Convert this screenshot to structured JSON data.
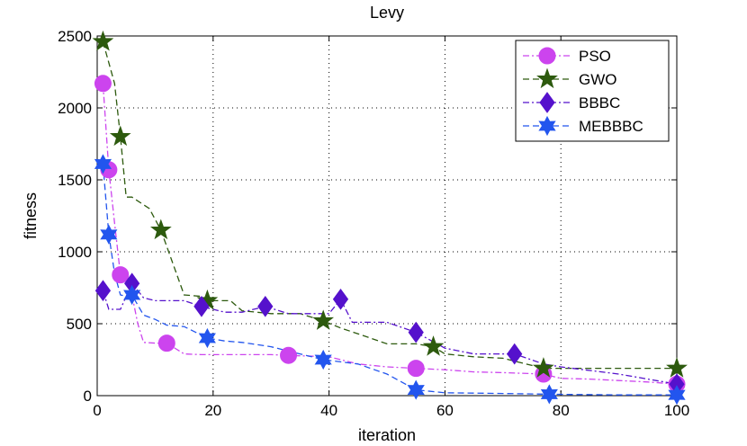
{
  "chart_data": {
    "type": "line",
    "title": "Levy",
    "xlabel": "iteration",
    "ylabel": "fitness",
    "xlim": [
      0,
      100
    ],
    "ylim": [
      0,
      2500
    ],
    "xticks": [
      0,
      20,
      40,
      60,
      80,
      100
    ],
    "yticks": [
      0,
      500,
      1000,
      1500,
      2000,
      2500
    ],
    "grid": true,
    "legend_position": "top-right",
    "series": [
      {
        "name": "PSO",
        "color": "#cc44ee",
        "linestyle": "dashdot",
        "marker": "circle",
        "x": [
          1,
          2,
          3,
          4,
          5,
          6,
          7,
          8,
          10,
          12,
          15,
          18,
          20,
          25,
          30,
          33,
          40,
          45,
          50,
          55,
          60,
          65,
          70,
          77,
          80,
          85,
          90,
          95,
          100
        ],
        "y": [
          2170,
          1570,
          1200,
          840,
          800,
          700,
          500,
          370,
          365,
          365,
          290,
          285,
          285,
          285,
          285,
          280,
          270,
          220,
          200,
          190,
          180,
          165,
          160,
          150,
          120,
          115,
          105,
          95,
          80
        ],
        "marker_x": [
          1,
          2,
          4,
          12,
          33,
          55,
          77,
          100
        ],
        "marker_y": [
          2170,
          1570,
          840,
          365,
          280,
          190,
          150,
          80
        ]
      },
      {
        "name": "GWO",
        "color": "#2d5a0e",
        "linestyle": "dashed",
        "marker": "star5",
        "x": [
          1,
          3,
          4,
          5,
          6,
          9,
          11,
          15,
          18,
          19,
          23,
          25,
          30,
          35,
          39,
          42,
          45,
          50,
          55,
          58,
          60,
          65,
          70,
          77,
          80,
          90,
          100
        ],
        "y": [
          2460,
          2170,
          1800,
          1380,
          1380,
          1300,
          1150,
          700,
          690,
          660,
          660,
          590,
          570,
          570,
          520,
          470,
          430,
          360,
          360,
          340,
          290,
          270,
          260,
          190,
          190,
          190,
          190
        ],
        "marker_x": [
          1,
          4,
          11,
          19,
          39,
          58,
          77,
          100
        ],
        "marker_y": [
          2460,
          1800,
          1150,
          660,
          520,
          340,
          190,
          190
        ]
      },
      {
        "name": "BBBC",
        "color": "#5511cc",
        "linestyle": "dashdot",
        "marker": "diamond",
        "x": [
          1,
          2,
          4,
          6,
          8,
          10,
          15,
          18,
          22,
          25,
          29,
          33,
          40,
          42,
          44,
          50,
          55,
          60,
          65,
          72,
          77,
          80,
          90,
          100
        ],
        "y": [
          730,
          600,
          600,
          780,
          680,
          660,
          660,
          620,
          580,
          580,
          620,
          570,
          570,
          670,
          510,
          510,
          440,
          330,
          290,
          290,
          220,
          200,
          150,
          80
        ],
        "marker_x": [
          1,
          6,
          18,
          29,
          42,
          55,
          72,
          100
        ],
        "marker_y": [
          730,
          780,
          620,
          620,
          670,
          440,
          290,
          80
        ]
      },
      {
        "name": "MEBBBC",
        "color": "#2255ee",
        "linestyle": "dashed",
        "marker": "star6",
        "x": [
          1,
          2,
          3,
          4,
          5,
          6,
          8,
          10,
          12,
          15,
          19,
          22,
          25,
          30,
          39,
          45,
          50,
          55,
          60,
          70,
          78,
          90,
          100
        ],
        "y": [
          1610,
          1120,
          850,
          700,
          690,
          700,
          560,
          530,
          490,
          480,
          400,
          380,
          370,
          340,
          250,
          220,
          150,
          40,
          20,
          15,
          10,
          5,
          5
        ],
        "marker_x": [
          1,
          2,
          6,
          19,
          39,
          55,
          78,
          100
        ],
        "marker_y": [
          1610,
          1120,
          700,
          400,
          250,
          40,
          10,
          5
        ]
      }
    ]
  }
}
